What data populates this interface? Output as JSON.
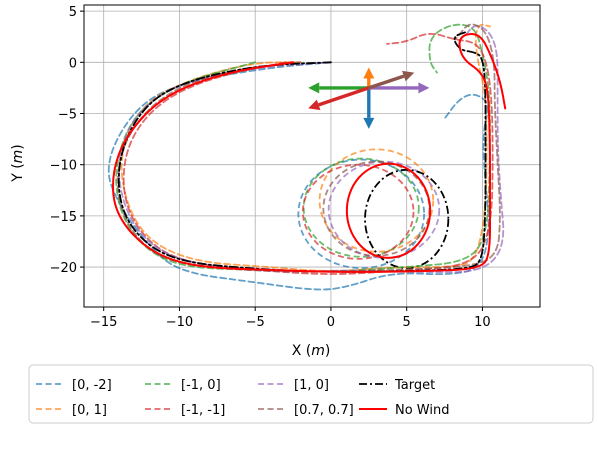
{
  "chart_data": {
    "type": "line",
    "title": "",
    "xlabel": "X",
    "ylabel": "Y",
    "unit": "m",
    "xlim": [
      -16.3,
      13.8
    ],
    "ylim": [
      -23.9,
      5.6
    ],
    "xticks": [
      -15,
      -10,
      -5,
      0,
      5,
      10
    ],
    "yticks": [
      5,
      0,
      -5,
      -10,
      -15,
      -20
    ],
    "xtick_labels": [
      "−15",
      "−10",
      "−5",
      "0",
      "5",
      "10"
    ],
    "ytick_labels": [
      "5",
      "0",
      "−5",
      "−10",
      "−15",
      "−20"
    ],
    "grid": true,
    "legend_position": "below",
    "series": [
      {
        "name": "[0, -2]",
        "color": "#1f77b4",
        "style": "dashed",
        "points": [
          [
            0,
            0
          ],
          [
            -4,
            -0.5
          ],
          [
            -10,
            -2
          ],
          [
            -13,
            -4.5
          ],
          [
            -15,
            -10
          ],
          [
            -14,
            -14
          ],
          [
            -12,
            -18
          ],
          [
            -10,
            -20.5
          ],
          [
            -5,
            -21.5
          ],
          [
            -1,
            -22.3
          ],
          [
            1,
            -22
          ],
          [
            4,
            -20.5
          ],
          [
            8,
            -20.8
          ],
          [
            10,
            -20
          ],
          [
            10.5,
            -16
          ],
          [
            10.2,
            -12
          ],
          [
            10,
            -7
          ],
          [
            10.5,
            -4
          ],
          [
            9.5,
            -3
          ],
          [
            8.5,
            -3.5
          ],
          [
            7.5,
            -5.5
          ]
        ]
      },
      {
        "name": "[0, 1]",
        "color": "#ff7f0e",
        "style": "dashed",
        "points": [
          [
            -2,
            0
          ],
          [
            -5,
            0
          ],
          [
            -9,
            -1.5
          ],
          [
            -12.5,
            -4
          ],
          [
            -14,
            -9
          ],
          [
            -13.5,
            -14
          ],
          [
            -12,
            -17.5
          ],
          [
            -9,
            -19.5
          ],
          [
            -4,
            -20
          ],
          [
            0,
            -20.5
          ],
          [
            4,
            -20
          ],
          [
            8,
            -20
          ],
          [
            9.5,
            -19.5
          ],
          [
            10.2,
            -15
          ],
          [
            10.3,
            -8
          ],
          [
            10.2,
            -3
          ],
          [
            9.7,
            0
          ],
          [
            9.5,
            2.5
          ],
          [
            9.8,
            3.8
          ],
          [
            10.5,
            3.5
          ]
        ]
      },
      {
        "name": "[-1, 0]",
        "color": "#2ca02c",
        "style": "dashed",
        "points": [
          [
            -5,
            0
          ],
          [
            -10,
            -2
          ],
          [
            -13,
            -5
          ],
          [
            -14.3,
            -10
          ],
          [
            -14,
            -14.5
          ],
          [
            -12.5,
            -18
          ],
          [
            -10,
            -20
          ],
          [
            -5,
            -20.3
          ],
          [
            0,
            -20.5
          ],
          [
            5,
            -20
          ],
          [
            9,
            -19.5
          ],
          [
            10.3,
            -17
          ],
          [
            10.5,
            -10
          ],
          [
            10.5,
            -3
          ],
          [
            10,
            1
          ],
          [
            9.5,
            3.5
          ],
          [
            8,
            3.8
          ],
          [
            6.5,
            2.5
          ],
          [
            6.5,
            0
          ],
          [
            7,
            -1
          ]
        ]
      },
      {
        "name": "[-1, -1]",
        "color": "#d62728",
        "style": "dashed",
        "points": [
          [
            -3,
            0
          ],
          [
            -8,
            -1.5
          ],
          [
            -11.5,
            -4
          ],
          [
            -13.5,
            -8
          ],
          [
            -13.8,
            -13
          ],
          [
            -12.5,
            -17
          ],
          [
            -10,
            -19.5
          ],
          [
            -5,
            -20.3
          ],
          [
            0,
            -20.8
          ],
          [
            5,
            -20.3
          ],
          [
            9.5,
            -19.8
          ],
          [
            10.6,
            -16
          ],
          [
            10.7,
            -9
          ],
          [
            10.6,
            -3
          ],
          [
            10.2,
            0.5
          ],
          [
            9.5,
            2
          ],
          [
            8.2,
            2.2
          ],
          [
            6.5,
            3
          ],
          [
            5,
            2
          ],
          [
            3.7,
            1.8
          ]
        ]
      },
      {
        "name": "[1, 0]",
        "color": "#9467bd",
        "style": "dashed",
        "points": [
          [
            0,
            0
          ],
          [
            -5,
            -0.5
          ],
          [
            -10,
            -2
          ],
          [
            -13,
            -5
          ],
          [
            -14.2,
            -10
          ],
          [
            -13.5,
            -15
          ],
          [
            -11.5,
            -18.5
          ],
          [
            -8,
            -20
          ],
          [
            -3,
            -20.5
          ],
          [
            1,
            -20.3
          ],
          [
            6,
            -20.5
          ],
          [
            10,
            -20.5
          ],
          [
            11.5,
            -18
          ],
          [
            11.2,
            -13
          ],
          [
            11,
            -8
          ],
          [
            11,
            -3
          ],
          [
            11,
            1
          ],
          [
            10.5,
            3
          ],
          [
            9.5,
            3.8
          ],
          [
            8.8,
            2.5
          ]
        ]
      },
      {
        "name": "[0.7, 0.7]",
        "color": "#8c564b",
        "style": "dashed",
        "points": [
          [
            -2,
            0
          ],
          [
            -7,
            -0.8
          ],
          [
            -11,
            -3
          ],
          [
            -13.5,
            -7
          ],
          [
            -14.3,
            -12
          ],
          [
            -13.3,
            -16.5
          ],
          [
            -11,
            -19.5
          ],
          [
            -6,
            -20.3
          ],
          [
            -1,
            -20.5
          ],
          [
            4,
            -20.3
          ],
          [
            9,
            -20
          ],
          [
            11,
            -19
          ],
          [
            11.2,
            -15
          ],
          [
            11,
            -10
          ],
          [
            10.8,
            -4
          ],
          [
            10.8,
            0
          ],
          [
            10.3,
            3
          ],
          [
            9.2,
            4
          ],
          [
            8.4,
            2.6
          ],
          [
            8.2,
            2.2
          ]
        ]
      },
      {
        "name": "Target",
        "color": "#000000",
        "style": "dashdot",
        "points": [
          [
            0,
            0
          ],
          [
            -5,
            -0.3
          ],
          [
            -10,
            -2
          ],
          [
            -12.5,
            -4.5
          ],
          [
            -14,
            -9
          ],
          [
            -14,
            -14
          ],
          [
            -12.5,
            -17.5
          ],
          [
            -10,
            -19.5
          ],
          [
            -5,
            -20.2
          ],
          [
            0,
            -20.5
          ],
          [
            5,
            -20.4
          ],
          [
            9,
            -20.2
          ],
          [
            10,
            -19.5
          ],
          [
            10.2,
            -15
          ],
          [
            10.2,
            -8
          ],
          [
            10.2,
            -2
          ],
          [
            10,
            0.5
          ],
          [
            9.5,
            1
          ],
          [
            8.5,
            1.2
          ],
          [
            8,
            2.5
          ],
          [
            9,
            3
          ]
        ]
      },
      {
        "name": "No Wind",
        "color": "#ff0000",
        "style": "solid",
        "points": [
          [
            -2.5,
            0
          ],
          [
            -7,
            -1
          ],
          [
            -11,
            -3.2
          ],
          [
            -13.5,
            -7
          ],
          [
            -14.5,
            -11
          ],
          [
            -14.2,
            -15
          ],
          [
            -12,
            -18.5
          ],
          [
            -9,
            -20
          ],
          [
            -4,
            -20.3
          ],
          [
            1,
            -20.5
          ],
          [
            6,
            -20.4
          ],
          [
            10,
            -20.2
          ],
          [
            10.5,
            -18.5
          ],
          [
            10.5,
            -14
          ],
          [
            10.5,
            -8
          ],
          [
            10.4,
            -3
          ],
          [
            10,
            -1
          ],
          [
            8.6,
            0.4
          ],
          [
            8.4,
            2.6
          ],
          [
            9.8,
            2.9
          ],
          [
            10.6,
            0.6
          ],
          [
            11.2,
            -2
          ],
          [
            11.5,
            -4.5
          ]
        ]
      }
    ],
    "loop": {
      "center": [
        2.8,
        -14.2
      ],
      "series": [
        {
          "name": "[0, -2]",
          "rx": 8.3,
          "ry": 5.3,
          "cx": 2.0,
          "cy": -14.8
        },
        {
          "name": "[0, 1]",
          "rx": 7.5,
          "ry": 5.0,
          "cx": 3.0,
          "cy": -13.5
        },
        {
          "name": "[-1, 0]",
          "rx": 7.6,
          "ry": 4.8,
          "cx": 2.0,
          "cy": -14.2
        },
        {
          "name": "[-1, -1]",
          "rx": 7.3,
          "ry": 4.6,
          "cx": 1.8,
          "cy": -14.6
        },
        {
          "name": "[1, 0]",
          "rx": 7.3,
          "ry": 4.7,
          "cx": 3.5,
          "cy": -14.4
        },
        {
          "name": "[0.7, 0.7]",
          "rx": 7.0,
          "ry": 4.6,
          "cx": 3.0,
          "cy": -14.3
        },
        {
          "name": "Target",
          "rx": 5.5,
          "ry": 4.8,
          "cx": 5.0,
          "cy": -15.3
        },
        {
          "name": "No Wind",
          "rx": 5.5,
          "ry": 4.6,
          "cx": 3.8,
          "cy": -14.5
        }
      ]
    },
    "wind_arrows": {
      "origin": [
        2.5,
        -2.5
      ],
      "arrows": [
        {
          "series": "[0, -2]",
          "color": "#1f77b4",
          "dx": 0,
          "dy": -4
        },
        {
          "series": "[0, 1]",
          "color": "#ff7f0e",
          "dx": 0,
          "dy": 2
        },
        {
          "series": "[-1, 0]",
          "color": "#2ca02c",
          "dx": -4,
          "dy": 0
        },
        {
          "series": "[-1, -1]",
          "color": "#d62728",
          "dx": -4,
          "dy": -2
        },
        {
          "series": "[1, 0]",
          "color": "#9467bd",
          "dx": 4,
          "dy": 0
        },
        {
          "series": "[0.7, 0.7]",
          "color": "#8c564b",
          "dx": 3,
          "dy": 1.5
        }
      ]
    }
  }
}
